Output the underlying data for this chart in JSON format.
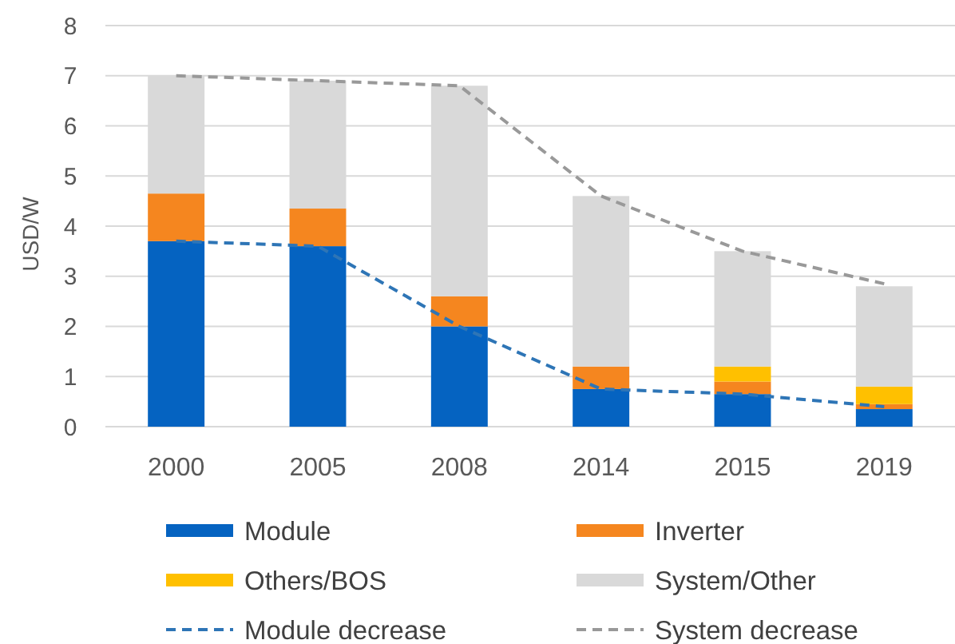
{
  "chart_data": {
    "type": "bar",
    "stacked": true,
    "ylabel": "USD/W",
    "categories": [
      "2000",
      "2005",
      "2008",
      "2014",
      "2015",
      "2019"
    ],
    "series": [
      {
        "name": "Module",
        "color": "#0563c1",
        "values": [
          3.7,
          3.6,
          2.0,
          0.75,
          0.65,
          0.35
        ]
      },
      {
        "name": "Inverter",
        "color": "#f5861f",
        "values": [
          0.95,
          0.75,
          0.6,
          0.45,
          0.25,
          0.1
        ]
      },
      {
        "name": "Others/BOS",
        "color": "#ffc000",
        "values": [
          0,
          0,
          0,
          0,
          0.3,
          0.35
        ]
      },
      {
        "name": "System/Other",
        "color": "#d9d9d9",
        "values": [
          2.35,
          2.55,
          4.2,
          3.4,
          2.3,
          2.0
        ]
      },
      {
        "name": "Module decrease",
        "type": "line",
        "color": "#2e75b6",
        "line_style": "dashed",
        "values": [
          3.7,
          3.6,
          2.0,
          0.75,
          0.65,
          0.4
        ]
      },
      {
        "name": "System decrease",
        "type": "line",
        "color": "#999999",
        "line_style": "dashed",
        "values": [
          7.0,
          6.9,
          6.8,
          4.6,
          3.5,
          2.85
        ]
      }
    ],
    "ylim": [
      0,
      8
    ],
    "yticks": [
      0,
      1,
      2,
      3,
      4,
      5,
      6,
      7,
      8
    ],
    "grid": "y",
    "legend": "bottom",
    "marker": "none"
  }
}
